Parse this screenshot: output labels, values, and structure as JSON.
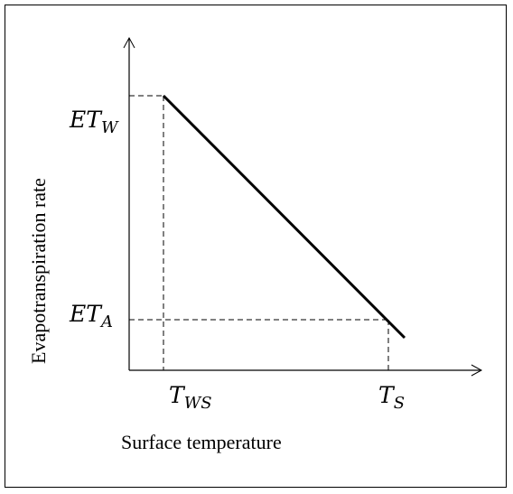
{
  "diagram": {
    "y_axis_label": "Evapotranspiration rate",
    "x_axis_label": "Surface temperature",
    "y_ticks": {
      "etw": {
        "base": "ET",
        "sub": "W"
      },
      "eta": {
        "base": "ET",
        "sub": "A"
      }
    },
    "x_ticks": {
      "tws": {
        "base": "T",
        "sub": "WS"
      },
      "ts": {
        "base": "T",
        "sub": "S"
      }
    }
  }
}
